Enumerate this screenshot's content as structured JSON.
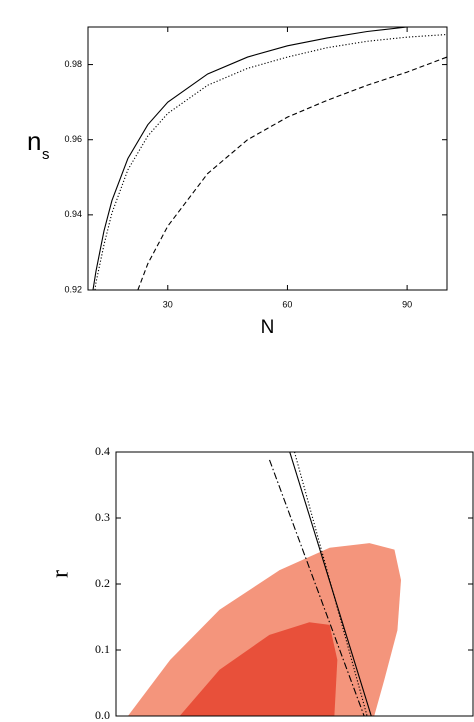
{
  "chart_data": [
    {
      "type": "line",
      "x_label": "N",
      "y_label": "n",
      "y_label_sub": "s",
      "xlim": [
        10,
        100
      ],
      "xticks": [
        30,
        60,
        90
      ],
      "ylim": [
        0.92,
        0.99
      ],
      "yticks": [
        0.92,
        0.94,
        0.96,
        0.98
      ],
      "series": [
        {
          "style": "solid",
          "color": "#000000",
          "x": [
            11.25,
            12,
            14,
            16,
            20,
            25,
            30,
            40,
            50,
            60,
            70,
            80,
            90
          ],
          "values": [
            0.92,
            0.925,
            0.9357,
            0.9438,
            0.955,
            0.964,
            0.97,
            0.9775,
            0.982,
            0.985,
            0.9871,
            0.9888,
            0.99
          ]
        },
        {
          "style": "dotted",
          "color": "#000000",
          "x": [
            11.75,
            12,
            14,
            16,
            20,
            25,
            30,
            40,
            50,
            60,
            70,
            80,
            90,
            100
          ],
          "values": [
            0.92,
            0.922,
            0.932,
            0.9405,
            0.952,
            0.961,
            0.967,
            0.9745,
            0.979,
            0.982,
            0.9845,
            0.9862,
            0.9873,
            0.988
          ]
        },
        {
          "style": "dashed",
          "color": "#000000",
          "x": [
            22.5,
            25,
            30,
            40,
            50,
            60,
            70,
            80,
            90,
            100
          ],
          "values": [
            0.92,
            0.927,
            0.937,
            0.951,
            0.96,
            0.966,
            0.9705,
            0.9745,
            0.978,
            0.982
          ]
        }
      ]
    },
    {
      "type": "contour",
      "y_label": "r",
      "xlim": [
        0.94,
        1.0
      ],
      "ylim": [
        0,
        0.4
      ],
      "yticks": [
        {
          "value": 0,
          "label": "0.0"
        },
        0.1,
        0.2,
        0.3,
        0.4
      ],
      "regions": [
        {
          "color": "#f4957c",
          "x": [
            0.942,
            0.9491,
            0.9574,
            0.9675,
            0.9759,
            0.9826,
            0.9868,
            0.9879,
            0.9873,
            0.9851,
            0.9834
          ],
          "values": [
            0,
            0.085,
            0.161,
            0.221,
            0.255,
            0.262,
            0.252,
            0.206,
            0.13,
            0.055,
            0
          ]
        },
        {
          "color": "#e8503a",
          "x": [
            0.9507,
            0.9574,
            0.9658,
            0.9725,
            0.9759,
            0.9772,
            0.9767
          ],
          "values": [
            0,
            0.07,
            0.123,
            0.142,
            0.138,
            0.085,
            0
          ]
        }
      ],
      "series": [
        {
          "style": "solid",
          "color": "#000000",
          "x": [
            0.9692,
            0.9829
          ],
          "values": [
            0.4,
            0
          ]
        },
        {
          "style": "dotted",
          "color": "#000000",
          "x": [
            0.97,
            0.9822
          ],
          "values": [
            0.4,
            0
          ]
        },
        {
          "style": "dashdot",
          "color": "#000000",
          "x": [
            0.9658,
            0.9817
          ],
          "values": [
            0.388,
            0
          ]
        }
      ]
    }
  ]
}
